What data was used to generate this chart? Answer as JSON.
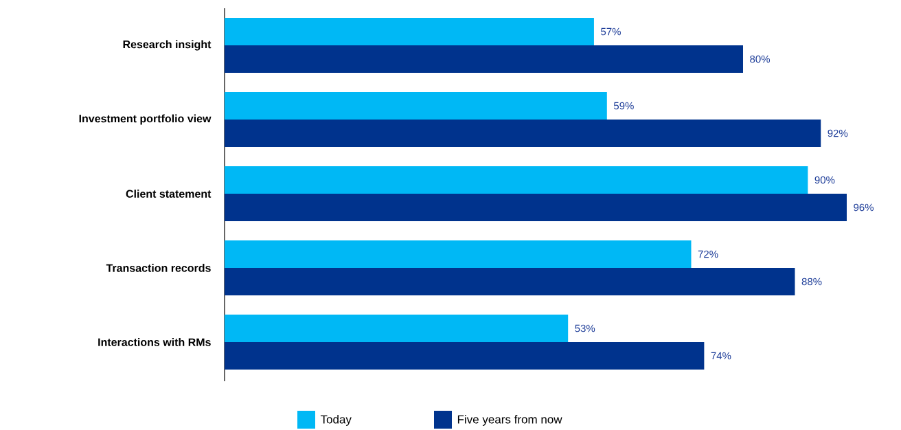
{
  "chart_data": {
    "type": "bar",
    "orientation": "horizontal",
    "categories": [
      "Research insight",
      "Investment portfolio view",
      "Client statement",
      "Transaction records",
      "Interactions with RMs"
    ],
    "series": [
      {
        "name": "Today",
        "color": "#00b8f5",
        "values": [
          57,
          59,
          90,
          72,
          53
        ],
        "value_labels": [
          "57%",
          "59%",
          "90%",
          "72%",
          "53%"
        ]
      },
      {
        "name": "Five years from now",
        "color": "#00338d",
        "values": [
          80,
          92,
          96,
          88,
          74
        ],
        "value_labels": [
          "80%",
          "92%",
          "96%",
          "88%",
          "74%"
        ]
      }
    ],
    "legend": "bottom"
  }
}
